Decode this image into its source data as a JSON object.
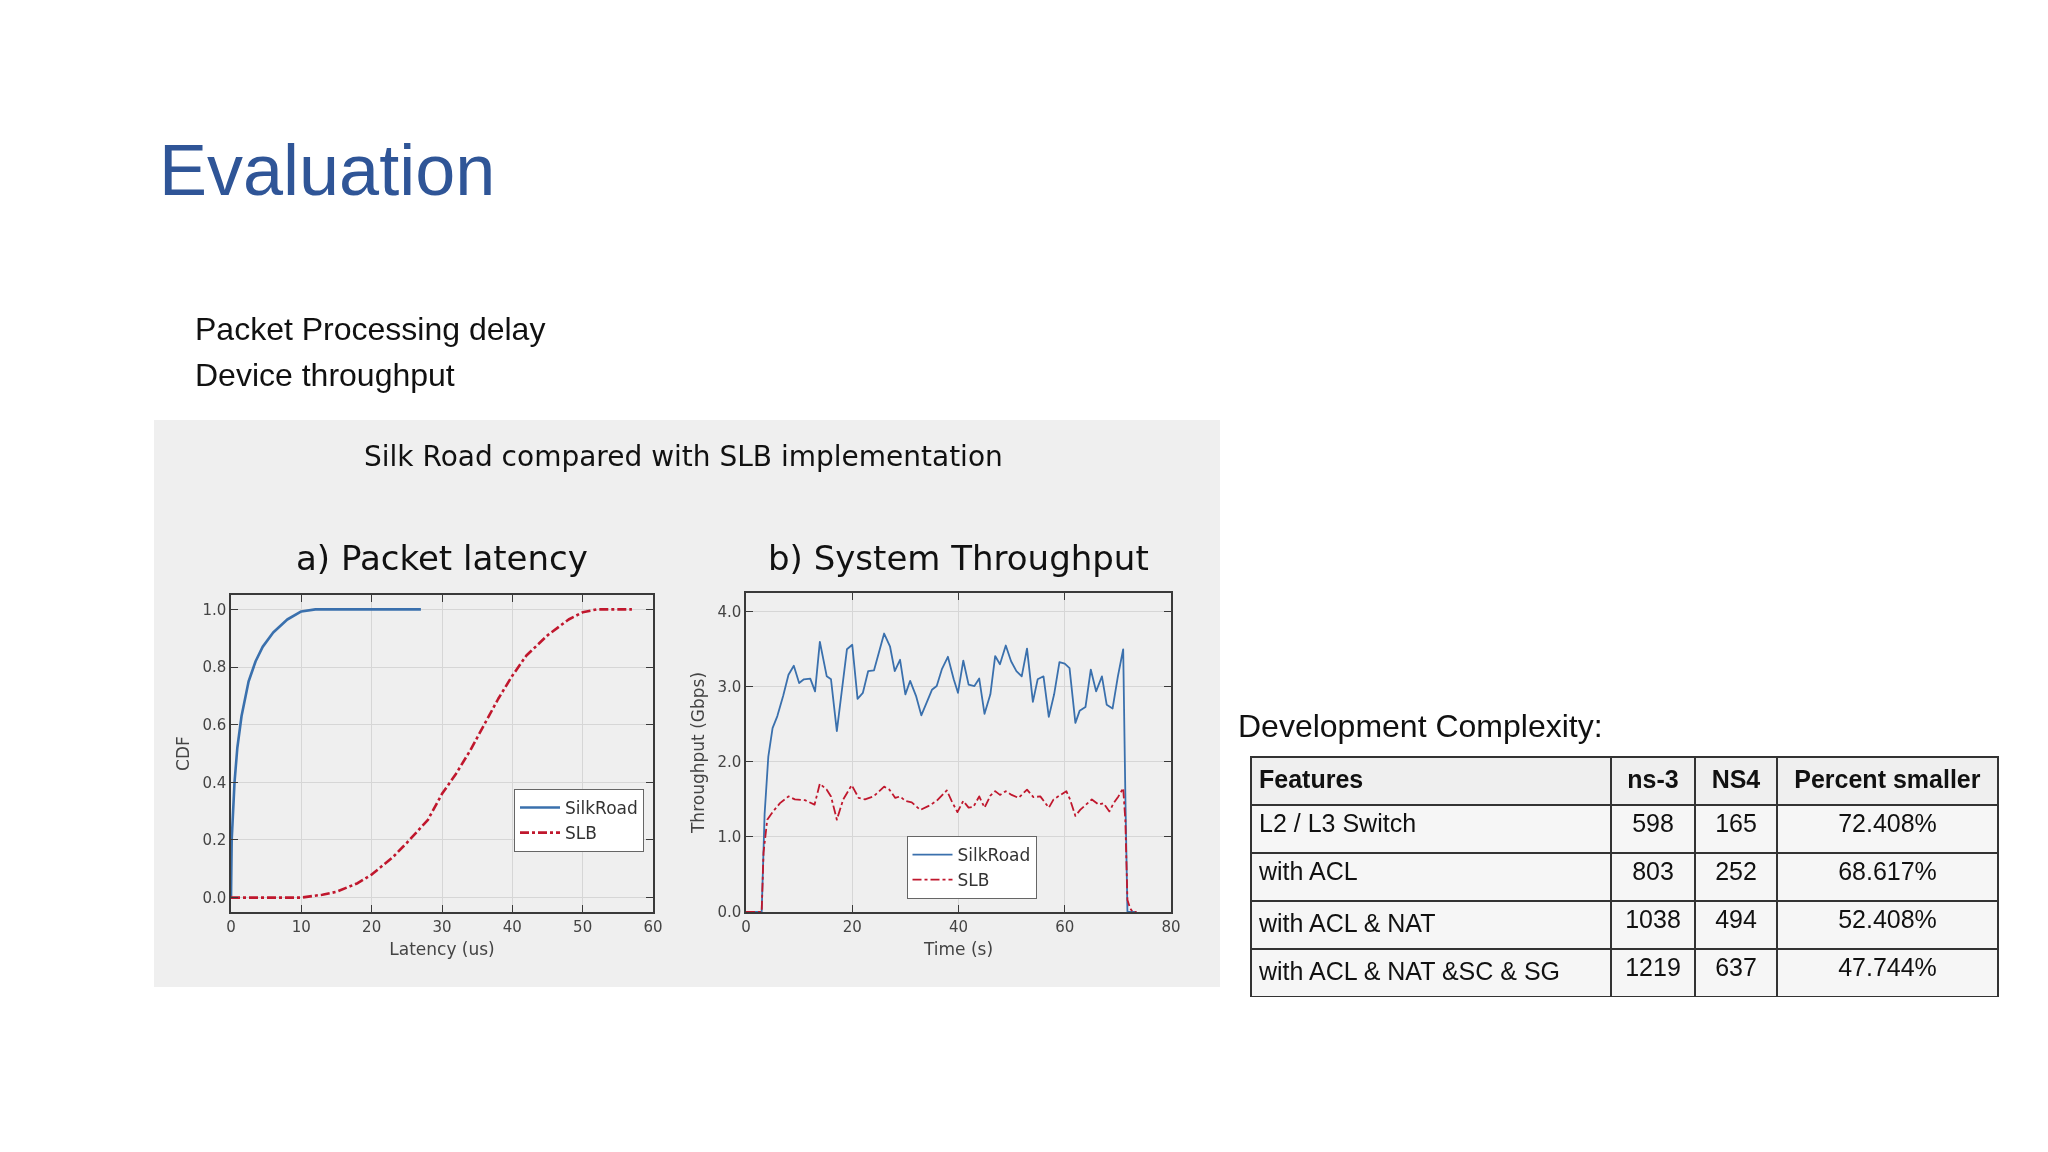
{
  "chart_data": [
    {
      "type": "other",
      "title": "Evaluation",
      "annotations": [
        "Packet Processing delay",
        "Device throughput",
        "Silk Road compared with SLB implementation"
      ]
    },
    {
      "type": "line",
      "title": "a) Packet latency",
      "xlabel": "Latency (us)",
      "ylabel": "CDF",
      "xlim": [
        0,
        60
      ],
      "xticks": [
        0,
        10,
        20,
        30,
        40,
        50,
        60
      ],
      "ylim": [
        -0.05,
        1.05
      ],
      "yticks": [
        {
          "value": 0,
          "label": "0.0"
        },
        0.2,
        0.4,
        0.6,
        0.8,
        {
          "value": 1,
          "label": "1.0"
        }
      ],
      "grid": true,
      "legend": "bottom right",
      "series": [
        {
          "name": "SilkRoad",
          "color": "#3a70ad",
          "line_style": "solid",
          "x": [
            0,
            0.1,
            0.5,
            0.9,
            1.5,
            2.5,
            3.5,
            4.5,
            6,
            8,
            10,
            12,
            27
          ],
          "values": [
            0,
            0.2,
            0.4,
            0.52,
            0.63,
            0.75,
            0.82,
            0.87,
            0.92,
            0.965,
            0.993,
            1.0,
            1.0
          ]
        },
        {
          "name": "SLB",
          "color": "#c0172d",
          "line_style": "dashdot",
          "x": [
            0,
            10,
            13,
            15,
            18,
            20,
            23,
            25,
            28,
            30,
            32,
            34,
            36,
            38,
            40,
            42,
            45,
            48,
            50,
            52,
            57
          ],
          "values": [
            0,
            0,
            0.01,
            0.02,
            0.05,
            0.08,
            0.14,
            0.19,
            0.27,
            0.36,
            0.43,
            0.51,
            0.6,
            0.69,
            0.77,
            0.84,
            0.91,
            0.965,
            0.99,
            1.0,
            1.0
          ]
        }
      ]
    },
    {
      "type": "line",
      "title": "b) System Throughput",
      "xlabel": "Time (s)",
      "ylabel": "Throughput (Gbps)",
      "xlim": [
        0,
        80
      ],
      "xticks": [
        0,
        20,
        40,
        60,
        80
      ],
      "ylim": [
        0,
        4.25
      ],
      "yticks": [
        {
          "value": 0,
          "label": "0.0"
        },
        {
          "value": 1,
          "label": "1.0"
        },
        {
          "value": 2,
          "label": "2.0"
        },
        {
          "value": 3,
          "label": "3.0"
        },
        {
          "value": 4,
          "label": "4.0"
        }
      ],
      "grid": true,
      "legend": "bottom",
      "series": [
        {
          "name": "SilkRoad",
          "color": "#3a70ad",
          "line_style": "solid",
          "x": [
            0,
            2.95,
            3.5,
            4.2,
            5.0,
            5.9,
            7.0,
            8.0,
            9.0,
            10.0,
            10.9,
            12.1,
            13.0,
            13.9,
            15.2,
            16.0,
            17.1,
            19.0,
            20.0,
            21.0,
            22.0,
            23.0,
            24.1,
            26.0,
            27.1,
            28.0,
            29.0,
            30.0,
            30.9,
            32.0,
            33.0,
            34.0,
            35.0,
            35.9,
            36.9,
            38.0,
            39.1,
            39.9,
            40.9,
            41.9,
            43.0,
            43.9,
            44.9,
            46.0,
            46.9,
            47.8,
            48.9,
            49.9,
            50.9,
            51.9,
            52.9,
            54.0,
            54.9,
            56.0,
            57.0,
            58.0,
            59.0,
            60.0,
            60.9,
            62.0,
            62.8,
            63.9,
            64.9,
            65.9,
            67.0,
            67.9,
            69.0,
            70.0,
            71.0,
            71.4,
            71.8,
            73.5
          ],
          "values": [
            0,
            0,
            1.3,
            2.07,
            2.45,
            2.61,
            2.88,
            3.16,
            3.28,
            3.05,
            3.1,
            3.11,
            2.94,
            3.6,
            3.14,
            3.1,
            2.41,
            3.5,
            3.56,
            2.84,
            2.92,
            3.21,
            3.22,
            3.71,
            3.54,
            3.21,
            3.36,
            2.9,
            3.08,
            2.88,
            2.62,
            2.79,
            2.96,
            3.01,
            3.24,
            3.4,
            3.1,
            2.92,
            3.35,
            3.03,
            3.01,
            3.11,
            2.64,
            2.9,
            3.41,
            3.3,
            3.55,
            3.34,
            3.21,
            3.14,
            3.51,
            2.8,
            3.1,
            3.14,
            2.6,
            2.9,
            3.33,
            3.31,
            3.25,
            2.52,
            2.68,
            2.73,
            3.23,
            2.94,
            3.14,
            2.76,
            2.71,
            3.14,
            3.5,
            1.59,
            0,
            0
          ]
        },
        {
          "name": "SLB",
          "color": "#c0172d",
          "line_style": "dashdot",
          "x": [
            0,
            2.95,
            3.3,
            4.0,
            5.1,
            6.4,
            8.0,
            9.2,
            11.1,
            12.9,
            13.9,
            15.2,
            16.0,
            17.1,
            18.3,
            19.9,
            21.2,
            22.4,
            24.0,
            26.0,
            27.0,
            28.1,
            29.0,
            30.0,
            31.2,
            32.8,
            34.3,
            35.9,
            37.8,
            38.7,
            39.8,
            40.9,
            41.9,
            42.8,
            43.9,
            44.9,
            46.0,
            46.9,
            47.8,
            48.9,
            50.0,
            51.3,
            52.9,
            54.1,
            55.4,
            57.0,
            57.9,
            59.2,
            60.3,
            61.0,
            62.0,
            62.9,
            65.1,
            66.4,
            67.3,
            68.4,
            69.2,
            70.1,
            71.0,
            71.4,
            71.8,
            72.3,
            72.8,
            73.5
          ],
          "values": [
            0,
            0,
            0.79,
            1.23,
            1.34,
            1.45,
            1.54,
            1.5,
            1.49,
            1.43,
            1.71,
            1.63,
            1.54,
            1.23,
            1.5,
            1.69,
            1.52,
            1.5,
            1.54,
            1.67,
            1.63,
            1.52,
            1.54,
            1.48,
            1.46,
            1.36,
            1.41,
            1.48,
            1.62,
            1.48,
            1.33,
            1.48,
            1.39,
            1.4,
            1.54,
            1.39,
            1.55,
            1.61,
            1.56,
            1.61,
            1.56,
            1.52,
            1.63,
            1.53,
            1.54,
            1.39,
            1.5,
            1.56,
            1.61,
            1.5,
            1.28,
            1.36,
            1.5,
            1.43,
            1.45,
            1.34,
            1.45,
            1.54,
            1.65,
            1.23,
            0.16,
            0.05,
            0,
            0
          ]
        }
      ]
    },
    {
      "type": "other",
      "title": "Development Complexity:",
      "ylabel": "Features",
      "categories": [
        "ns-3",
        "NS4",
        "Percent smaller"
      ],
      "y_categories": [
        "L2 / L3 Switch",
        "with ACL",
        "with ACL & NAT",
        "with ACL & NAT &SC & SG"
      ],
      "cell_labels": [
        [
          "598",
          "165",
          "72.408%"
        ],
        [
          "803",
          "252",
          "68.617%"
        ],
        [
          "1038",
          "494",
          "52.408%"
        ],
        [
          "1219",
          "637",
          "47.744%"
        ]
      ]
    }
  ]
}
